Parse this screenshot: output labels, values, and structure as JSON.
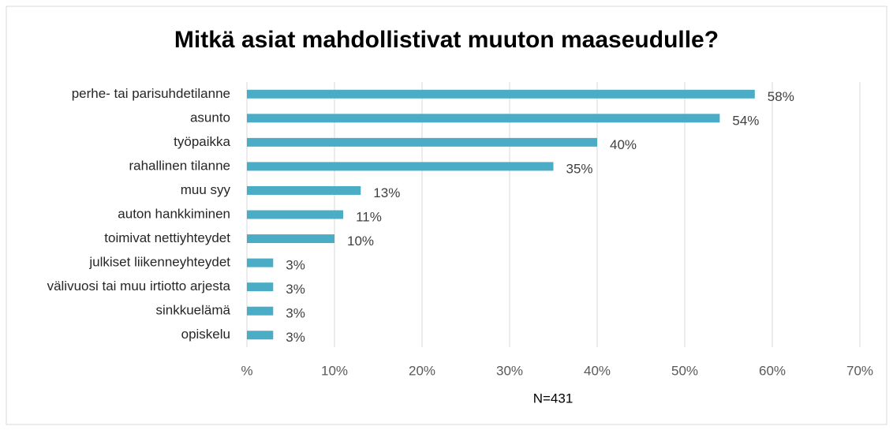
{
  "chart_data": {
    "type": "bar",
    "orientation": "horizontal",
    "title": "Mitkä asiat mahdollistivat muuton maaseudulle?",
    "categories": [
      "perhe- tai parisuhdetilanne",
      "asunto",
      "työpaikka",
      "rahallinen tilanne",
      "muu syy",
      "auton hankkiminen",
      "toimivat nettiyhteydet",
      "julkiset liikenneyhteydet",
      "välivuosi tai muu irtiotto arjesta",
      "sinkkuelämä",
      "opiskelu"
    ],
    "values": [
      58,
      54,
      40,
      35,
      13,
      11,
      10,
      3,
      3,
      3,
      3
    ],
    "value_labels": [
      "58%",
      "54%",
      "40%",
      "35%",
      "13%",
      "11%",
      "10%",
      "3%",
      "3%",
      "3%",
      "3%"
    ],
    "color": "#4bacc6",
    "xlim": [
      0,
      70
    ],
    "xticks": [
      {
        "value": 0,
        "label": "%"
      },
      {
        "value": 10,
        "label": "10%"
      },
      {
        "value": 20,
        "label": "20%"
      },
      {
        "value": 30,
        "label": "30%"
      },
      {
        "value": 40,
        "label": "40%"
      },
      {
        "value": 50,
        "label": "50%"
      },
      {
        "value": 60,
        "label": "60%"
      },
      {
        "value": 70,
        "label": "70%"
      }
    ],
    "xlabel": "N=431",
    "grid": true
  }
}
